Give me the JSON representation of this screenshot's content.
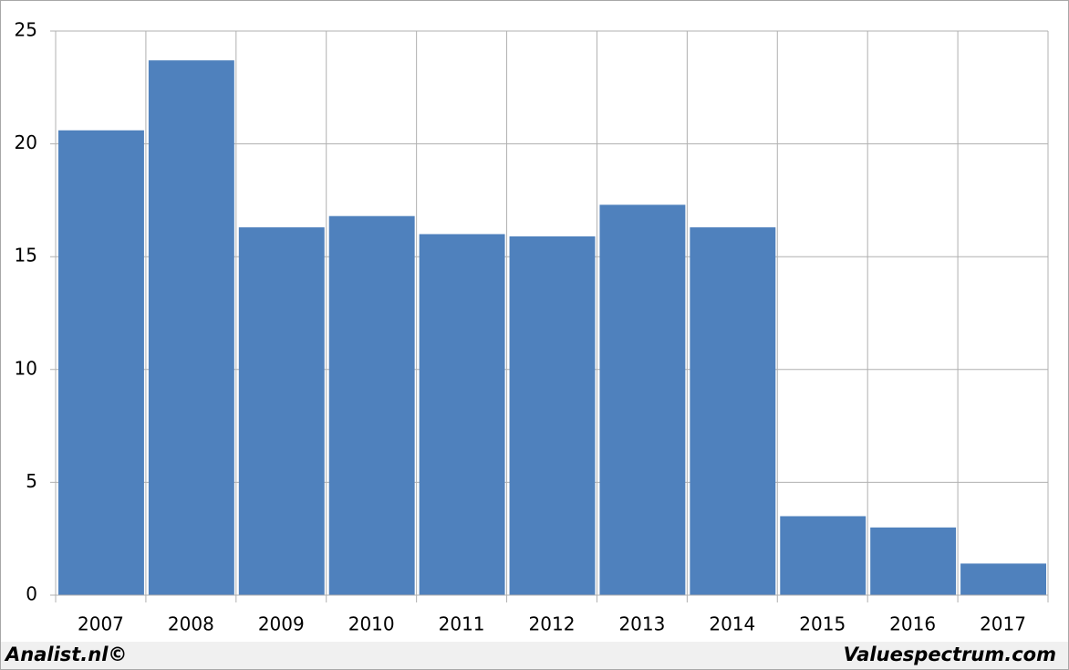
{
  "chart_data": {
    "type": "bar",
    "categories": [
      "2007",
      "2008",
      "2009",
      "2010",
      "2011",
      "2012",
      "2013",
      "2014",
      "2015",
      "2016",
      "2017"
    ],
    "values": [
      20.6,
      23.7,
      16.3,
      16.8,
      16.0,
      15.9,
      17.3,
      16.3,
      3.5,
      3.0,
      1.4
    ],
    "color": "#4f81bd",
    "ylim": [
      0,
      25
    ],
    "yticks": [
      0,
      5,
      10,
      15,
      20,
      25
    ],
    "grid": true
  },
  "footer": {
    "left": "Analist.nl©",
    "right": "Valuespectrum.com"
  }
}
